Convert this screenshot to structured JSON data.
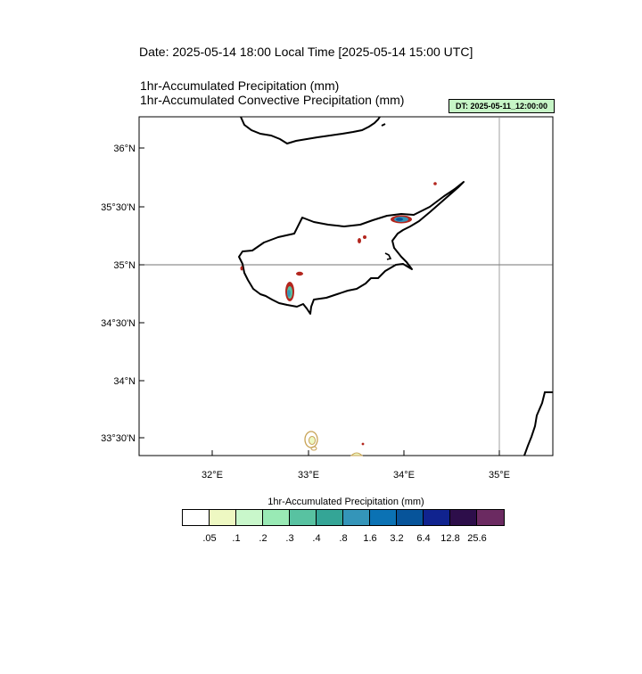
{
  "header": {
    "date_line": "Date: 2025-05-14  18:00 Local Time [2025-05-14  15:00 UTC]",
    "title_1": "1hr-Accumulated Precipitation   (mm)",
    "title_2": "1hr-Accumulated Convective Precipitation   (mm)",
    "dt_badge": "DT: 2025-05-11_12:00:00"
  },
  "map": {
    "lat_labels": [
      "36°N",
      "35°30'N",
      "35°N",
      "34°30'N",
      "34°N",
      "33°30'N"
    ],
    "lon_labels": [
      "32°E",
      "33°E",
      "34°E",
      "35°E"
    ],
    "gridline_lat": "35°N",
    "gridline_lon": "35°E",
    "extent": {
      "lon_min": 31.15,
      "lon_max": 35.55,
      "lat_min": 33.25,
      "lat_max": 36.25
    },
    "coast_color": "#000000",
    "precip_outline_color": "#b3261e"
  },
  "legend": {
    "title": "1hr-Accumulated Precipitation  (mm)",
    "labels": [
      ".05",
      ".1",
      ".2",
      ".3",
      ".4",
      ".8",
      "1.6",
      "3.2",
      "6.4",
      "12.8",
      "25.6"
    ],
    "colors": [
      "#ffffff",
      "#eef8c2",
      "#c9f7cb",
      "#99eab5",
      "#58c2a1",
      "#34a596",
      "#3495b9",
      "#0b72b4",
      "#07549a",
      "#10238f",
      "#2d0e4a",
      "#6b2a61"
    ]
  }
}
